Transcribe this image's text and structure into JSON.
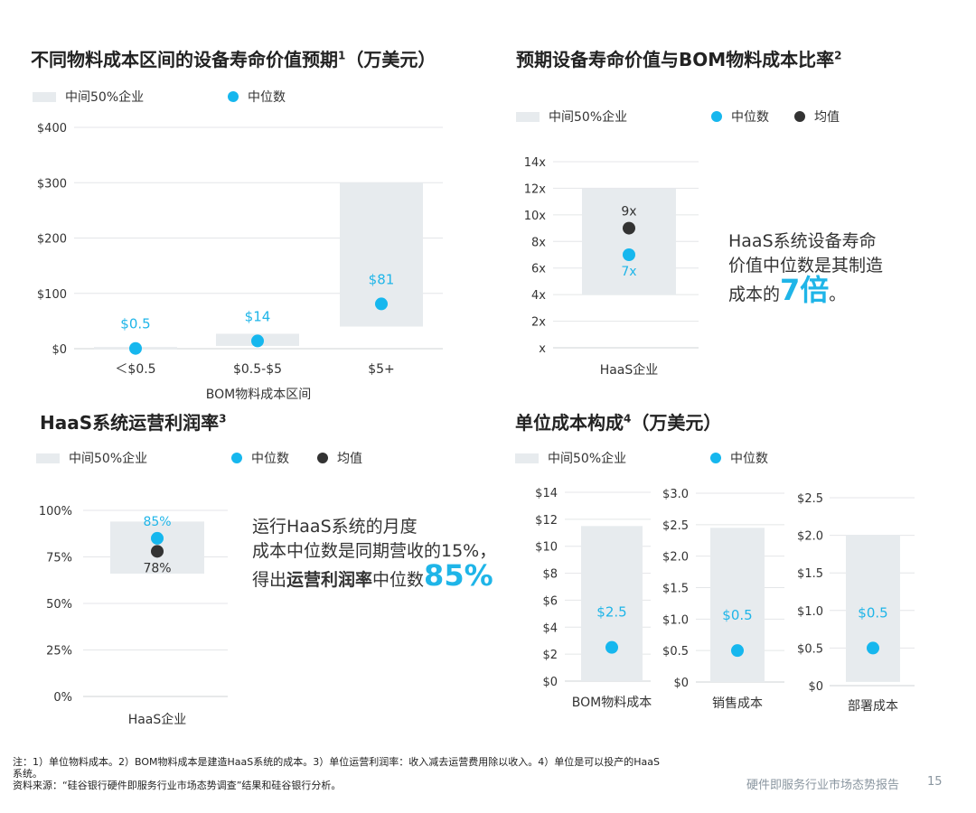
{
  "colors": {
    "band": "#e7ebee",
    "median": "#16b7ee",
    "mean": "#333333",
    "grid": "#e4e6e8",
    "axis": "#cfd3d6",
    "label": "#1fb5e8"
  },
  "legend": {
    "middle50": "中间50%企业",
    "median": "中位数",
    "mean": "均值"
  },
  "panels": {
    "p1": {
      "title": "不同物料成本区间的设备寿命价值预期",
      "sup": "1",
      "unit": "（万美元）"
    },
    "p2": {
      "title": "预期设备寿命价值与BOM物料成本比率",
      "sup": "2",
      "callout": {
        "line1": "HaaS系统设备寿命",
        "line2": "价值中位数是其制造",
        "line3_pre": "成本的",
        "line3_big": "7倍",
        "line3_post": "。"
      }
    },
    "p3": {
      "title": "HaaS系统运营利润率",
      "sup": "3",
      "callout": {
        "line1": "运行HaaS系统的月度",
        "line2": "成本中位数是同期营收的15%，",
        "line3_pre": "得出",
        "line3_bold": "运营利润率",
        "line3_mid": "中位数",
        "line3_big": "85%"
      }
    },
    "p4": {
      "title": "单位成本构成",
      "sup": "4",
      "unit": "（万美元）"
    }
  },
  "chart_data": [
    {
      "type": "range-dot",
      "title": "不同物料成本区间的设备寿命价值预期（万美元）",
      "xlabel": "BOM物料成本区间",
      "categories": [
        "＜$0.5",
        "$0.5-$5",
        "$5+"
      ],
      "y_ticks": [
        "$0",
        "$100",
        "$200",
        "$300",
        "$400"
      ],
      "ylim": [
        0,
        400
      ],
      "band_low": [
        0,
        5,
        40
      ],
      "band_high": [
        3,
        27,
        300
      ],
      "median": [
        0.5,
        14,
        81
      ],
      "median_labels": [
        "$0.5",
        "$14",
        "$81"
      ],
      "grid": true
    },
    {
      "type": "range-dot",
      "title": "预期设备寿命价值与BOM物料成本比率",
      "categories": [
        "HaaS企业"
      ],
      "y_ticks": [
        "x",
        "2x",
        "4x",
        "6x",
        "8x",
        "10x",
        "12x",
        "14x"
      ],
      "ylim": [
        0,
        14
      ],
      "band_low": [
        4
      ],
      "band_high": [
        12
      ],
      "median": [
        7
      ],
      "median_labels": [
        "7x"
      ],
      "mean": [
        9
      ],
      "mean_labels": [
        "9x"
      ],
      "grid": true
    },
    {
      "type": "range-dot",
      "title": "HaaS系统运营利润率",
      "categories": [
        "HaaS企业"
      ],
      "y_ticks": [
        "0%",
        "25%",
        "50%",
        "75%",
        "100%"
      ],
      "ylim": [
        0,
        100
      ],
      "band_low": [
        66
      ],
      "band_high": [
        94
      ],
      "median": [
        85
      ],
      "median_labels": [
        "85%"
      ],
      "mean": [
        78
      ],
      "mean_labels": [
        "78%"
      ],
      "grid": true
    },
    {
      "type": "range-dot",
      "title": "单位成本构成（万美元）",
      "subcharts": [
        {
          "category": "BOM物料成本",
          "y_ticks": [
            "$0",
            "$2",
            "$4",
            "$6",
            "$8",
            "$10",
            "$12",
            "$14"
          ],
          "ylim": [
            0,
            14
          ],
          "band_low": [
            0
          ],
          "band_high": [
            11.5
          ],
          "median": [
            2.5
          ],
          "median_labels": [
            "$2.5"
          ]
        },
        {
          "category": "销售成本",
          "y_ticks": [
            "$0",
            "$0.5",
            "$1.0",
            "$1.5",
            "$2.0",
            "$2.5",
            "$3.0"
          ],
          "ylim": [
            0,
            3
          ],
          "band_low": [
            0
          ],
          "band_high": [
            2.45
          ],
          "median": [
            0.5
          ],
          "median_labels": [
            "$0.5"
          ]
        },
        {
          "category": "部署成本",
          "y_ticks": [
            "$0",
            "$0.5",
            "$1.0",
            "$1.5",
            "$2.0",
            "$2.5"
          ],
          "ylim": [
            0,
            2.5
          ],
          "band_low": [
            0.05
          ],
          "band_high": [
            2.0
          ],
          "median": [
            0.5
          ],
          "median_labels": [
            "$0.5"
          ]
        }
      ],
      "grid": true
    }
  ],
  "footnote": {
    "line1": "注：1）单位物料成本。2）BOM物料成本是建造HaaS系统的成本。3）单位运营利润率：收入减去运营费用除以收入。4）单位是可以投产的HaaS",
    "line2": "系统。",
    "line3": "资料来源：“硅谷银行硬件即服务行业市场态势调查”结果和硅谷银行分析。"
  },
  "page_footer": {
    "report": "硬件即服务行业市场态势报告",
    "page": "15"
  }
}
